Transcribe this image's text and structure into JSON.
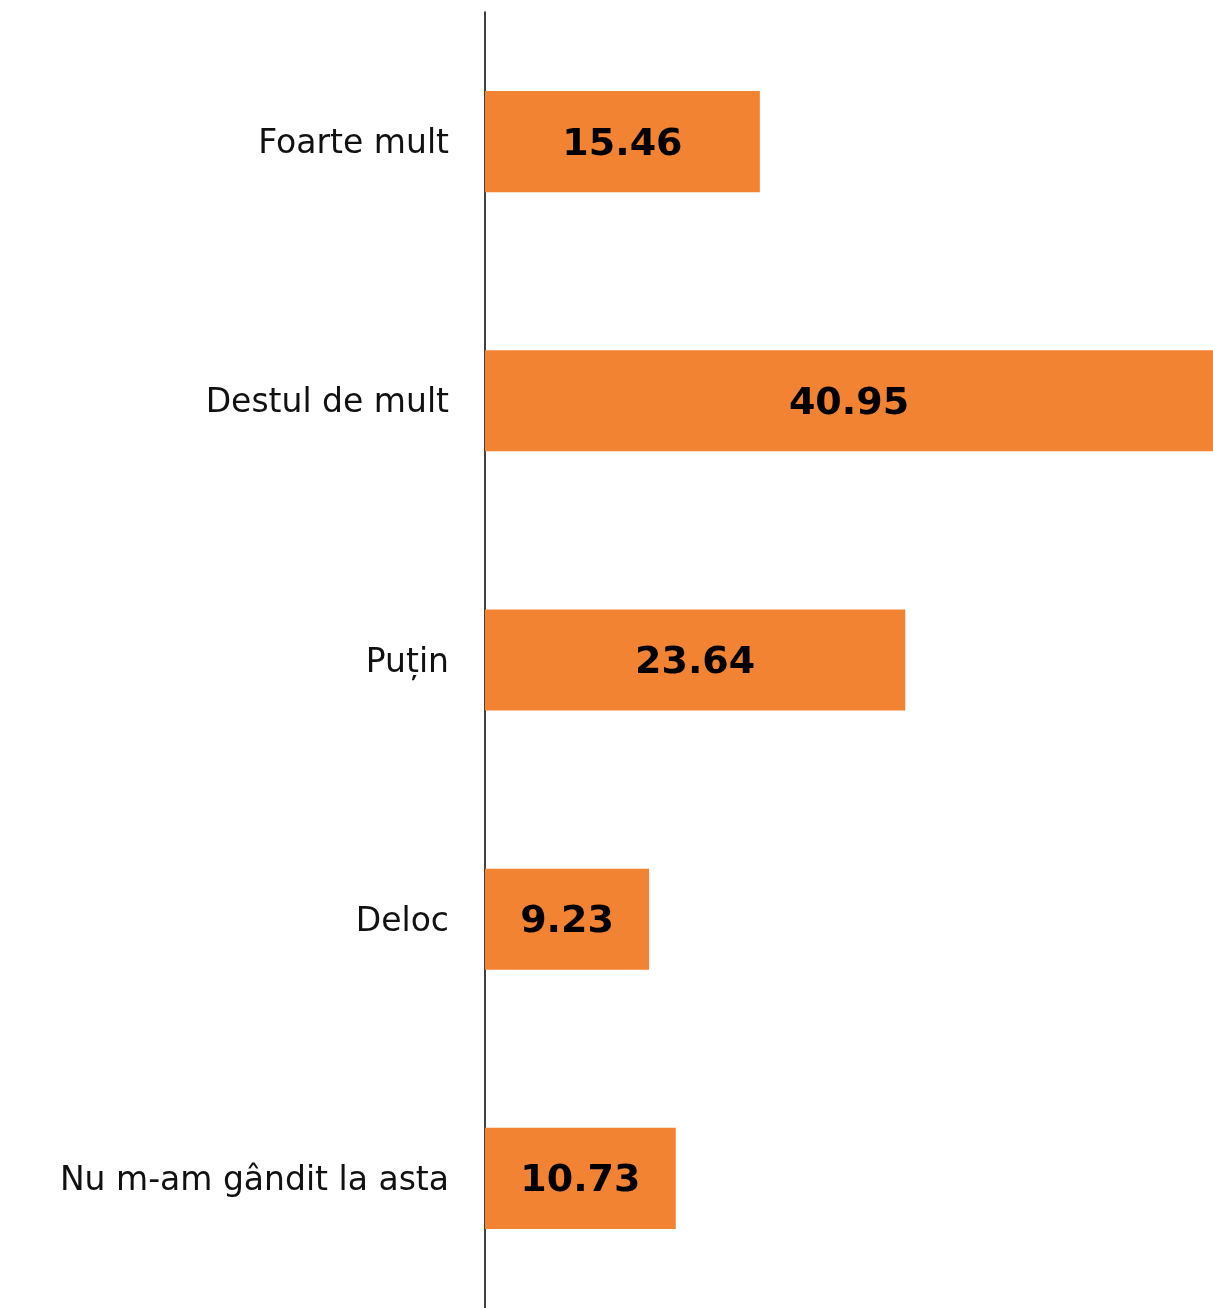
{
  "chart_data": {
    "type": "bar",
    "orientation": "horizontal",
    "categories": [
      "Foarte mult",
      "Destul de mult",
      "Puțin",
      "Deloc",
      "Nu m-am gândit la asta"
    ],
    "values": [
      15.46,
      40.95,
      23.64,
      9.23,
      10.73
    ],
    "color": "#f28332",
    "data_labels": true
  }
}
